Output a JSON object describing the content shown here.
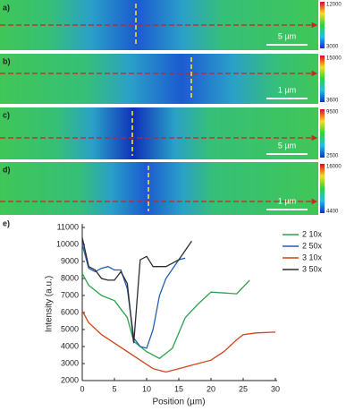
{
  "panels": [
    {
      "label": "a)",
      "scale_bar": "5 µm",
      "colorbar_max": 12000,
      "colorbar_min": 3000
    },
    {
      "label": "b)",
      "scale_bar": "1 µm",
      "colorbar_max": 15000,
      "colorbar_min": 3600
    },
    {
      "label": "c)",
      "scale_bar": "5 µm",
      "colorbar_max": 9500,
      "colorbar_min": 2500
    },
    {
      "label": "d)",
      "scale_bar": "1 µm",
      "colorbar_max": 16000,
      "colorbar_min": 4400
    }
  ],
  "chart_data": {
    "type": "line",
    "label": "e)",
    "x_label": "Position (µm)",
    "y_label": "Intensity (a.u.)",
    "xlim": [
      0,
      30
    ],
    "xticks": [
      0,
      5,
      10,
      15,
      20,
      25,
      30
    ],
    "ylim": [
      2000,
      11000
    ],
    "yticks": [
      2000,
      3000,
      4000,
      5000,
      6000,
      7000,
      8000,
      9000,
      10000,
      11000
    ],
    "series": [
      {
        "name": "2 10x",
        "color": "#2ca24c",
        "x": [
          0,
          1,
          3,
          5,
          7,
          8,
          9,
          10,
          12,
          14,
          16,
          18,
          20,
          24,
          26
        ],
        "values": [
          8300,
          7600,
          7000,
          6700,
          5700,
          4300,
          4000,
          3700,
          3300,
          3900,
          5700,
          6500,
          7200,
          7100,
          7900
        ]
      },
      {
        "name": "2 50x",
        "color": "#1f5fb0",
        "x": [
          0,
          1,
          2,
          3,
          4,
          5,
          6,
          7,
          8,
          9,
          10,
          11,
          12,
          13,
          15,
          16
        ],
        "values": [
          10000,
          8600,
          8400,
          8600,
          8700,
          8500,
          8500,
          7400,
          4500,
          4000,
          3900,
          5000,
          7000,
          8000,
          9100,
          9200
        ]
      },
      {
        "name": "3 10x",
        "color": "#d0441a",
        "x": [
          0,
          1,
          3,
          5,
          7,
          9,
          11,
          13,
          15,
          17,
          20,
          22,
          24,
          25,
          27,
          30
        ],
        "values": [
          6100,
          5400,
          4700,
          4200,
          3700,
          3200,
          2700,
          2500,
          2700,
          2900,
          3200,
          3700,
          4400,
          4700,
          4800,
          4850
        ]
      },
      {
        "name": "3 50x",
        "color": "#2b2b2b",
        "x": [
          0,
          1,
          2,
          3,
          4,
          5,
          6,
          7,
          8,
          9,
          10,
          11,
          12,
          13,
          14,
          15,
          17
        ],
        "values": [
          10400,
          8700,
          8500,
          8000,
          7900,
          7900,
          8400,
          7700,
          4200,
          9100,
          9300,
          8700,
          8700,
          8700,
          8900,
          9100,
          10200
        ]
      }
    ]
  }
}
